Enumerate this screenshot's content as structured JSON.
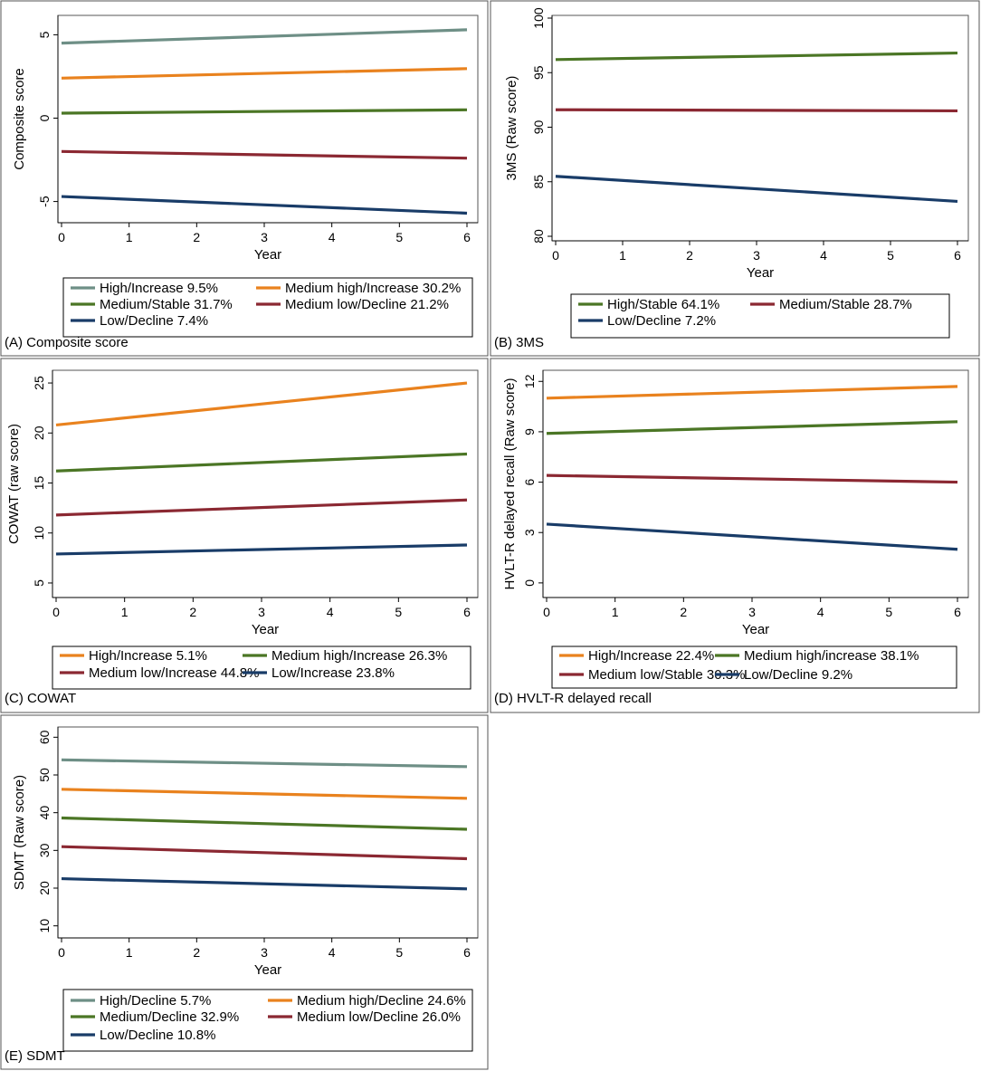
{
  "colors": {
    "teal": "#6e8f86",
    "orange": "#e9821e",
    "green": "#4b7625",
    "red": "#8b2832",
    "navy": "#193c68"
  },
  "chart_data": [
    {
      "type": "line",
      "caption": "(A) Composite score",
      "xlabel": "Year",
      "ylabel": "Composite score",
      "xlim": [
        0,
        6
      ],
      "ylim": [
        -6,
        6
      ],
      "yticks": [
        -5,
        0,
        5
      ],
      "ytick_labels": [
        "-5",
        "0",
        "5"
      ],
      "xticks": [
        0,
        1,
        2,
        3,
        4,
        5,
        6
      ],
      "series": [
        {
          "name": "High/Increase",
          "pct": "9.5%",
          "color": "#6e8f86",
          "x": [
            0,
            6
          ],
          "y": [
            4.5,
            5.3
          ]
        },
        {
          "name": "Medium high/Increase",
          "pct": "30.2%",
          "color": "#e9821e",
          "x": [
            0,
            6
          ],
          "y": [
            2.4,
            2.97
          ]
        },
        {
          "name": "Medium/Stable",
          "pct": "31.7%",
          "color": "#4b7625",
          "x": [
            0,
            6
          ],
          "y": [
            0.3,
            0.5
          ]
        },
        {
          "name": "Medium low/Decline",
          "pct": "21.2%",
          "color": "#8b2832",
          "x": [
            0,
            6
          ],
          "y": [
            -2.0,
            -2.4
          ]
        },
        {
          "name": "Low/Decline",
          "pct": "7.4%",
          "color": "#193c68",
          "x": [
            0,
            6
          ],
          "y": [
            -4.7,
            -5.7
          ]
        }
      ]
    },
    {
      "type": "line",
      "caption": "(B) 3MS",
      "xlabel": "Year",
      "ylabel": "3MS (Raw score)",
      "xlim": [
        0,
        6
      ],
      "ylim": [
        80,
        100
      ],
      "yticks": [
        80,
        85,
        90,
        95,
        100
      ],
      "ytick_labels": [
        "80",
        "85",
        "90",
        "95",
        "100"
      ],
      "xticks": [
        0,
        1,
        2,
        3,
        4,
        5,
        6
      ],
      "series": [
        {
          "name": "High/Stable",
          "pct": "64.1%",
          "color": "#4b7625",
          "x": [
            0,
            6
          ],
          "y": [
            96.2,
            96.8
          ]
        },
        {
          "name": "Medium/Stable",
          "pct": "28.7%",
          "color": "#8b2832",
          "x": [
            0,
            6
          ],
          "y": [
            91.6,
            91.5
          ]
        },
        {
          "name": "Low/Decline",
          "pct": "7.2%",
          "color": "#193c68",
          "x": [
            0,
            6
          ],
          "y": [
            85.5,
            83.2
          ]
        }
      ]
    },
    {
      "type": "line",
      "caption": "(C) COWAT",
      "xlabel": "Year",
      "ylabel": "COWAT (raw score)",
      "xlim": [
        0,
        6
      ],
      "ylim": [
        4,
        26
      ],
      "yticks": [
        5,
        10,
        15,
        20,
        25
      ],
      "ytick_labels": [
        "5",
        "10",
        "15",
        "20",
        "25"
      ],
      "xticks": [
        0,
        1,
        2,
        3,
        4,
        5,
        6
      ],
      "series": [
        {
          "name": "High/Increase",
          "pct": "5.1%",
          "color": "#e9821e",
          "x": [
            0,
            6
          ],
          "y": [
            20.8,
            25.0
          ]
        },
        {
          "name": "Medium high/Increase",
          "pct": "26.3%",
          "color": "#4b7625",
          "x": [
            0,
            6
          ],
          "y": [
            16.2,
            17.9
          ]
        },
        {
          "name": "Medium low/Increase",
          "pct": "44.8%",
          "color": "#8b2832",
          "x": [
            0,
            6
          ],
          "y": [
            11.8,
            13.3
          ]
        },
        {
          "name": "Low/Increase",
          "pct": "23.8%",
          "color": "#193c68",
          "x": [
            0,
            6
          ],
          "y": [
            7.9,
            8.8
          ]
        }
      ]
    },
    {
      "type": "line",
      "caption": "(D) HVLT-R delayed recall",
      "xlabel": "Year",
      "ylabel": "HVLT-R delayed recall (Raw score)",
      "xlim": [
        0,
        6
      ],
      "ylim": [
        -0.6,
        12.5
      ],
      "yticks": [
        0,
        3,
        6,
        9,
        12
      ],
      "ytick_labels": [
        "0",
        "3",
        "6",
        "9",
        "12"
      ],
      "xticks": [
        0,
        1,
        2,
        3,
        4,
        5,
        6
      ],
      "series": [
        {
          "name": "High/Increase",
          "pct": "22.4%",
          "color": "#e9821e",
          "x": [
            0,
            6
          ],
          "y": [
            11.0,
            11.7
          ]
        },
        {
          "name": "Medium high/increase",
          "pct": "38.1%",
          "color": "#4b7625",
          "x": [
            0,
            6
          ],
          "y": [
            8.9,
            9.6
          ]
        },
        {
          "name": "Medium low/Stable",
          "pct": "30.3%",
          "color": "#8b2832",
          "x": [
            0,
            6
          ],
          "y": [
            6.4,
            6.0
          ]
        },
        {
          "name": "Low/Decline",
          "pct": "9.2%",
          "color": "#193c68",
          "x": [
            0,
            6
          ],
          "y": [
            3.5,
            2.0
          ]
        }
      ]
    },
    {
      "type": "line",
      "caption": "(E) SDMT",
      "xlabel": "Year",
      "ylabel": "SDMT (Raw score)",
      "xlim": [
        0,
        6
      ],
      "ylim": [
        8,
        62
      ],
      "yticks": [
        10,
        20,
        30,
        40,
        50,
        60
      ],
      "ytick_labels": [
        "10",
        "20",
        "30",
        "40",
        "50",
        "60"
      ],
      "xticks": [
        0,
        1,
        2,
        3,
        4,
        5,
        6
      ],
      "series": [
        {
          "name": "High/Decline",
          "pct": "5.7%",
          "color": "#6e8f86",
          "x": [
            0,
            6
          ],
          "y": [
            54.0,
            52.2
          ]
        },
        {
          "name": "Medium high/Decline",
          "pct": "24.6%",
          "color": "#e9821e",
          "x": [
            0,
            6
          ],
          "y": [
            46.2,
            43.8
          ]
        },
        {
          "name": "Medium/Decline",
          "pct": "32.9%",
          "color": "#4b7625",
          "x": [
            0,
            6
          ],
          "y": [
            38.6,
            35.6
          ]
        },
        {
          "name": "Medium low/Decline",
          "pct": "26.0%",
          "color": "#8b2832",
          "x": [
            0,
            6
          ],
          "y": [
            31.0,
            27.8
          ]
        },
        {
          "name": "Low/Decline",
          "pct": "10.8%",
          "color": "#193c68",
          "x": [
            0,
            6
          ],
          "y": [
            22.5,
            19.8
          ]
        }
      ]
    }
  ]
}
